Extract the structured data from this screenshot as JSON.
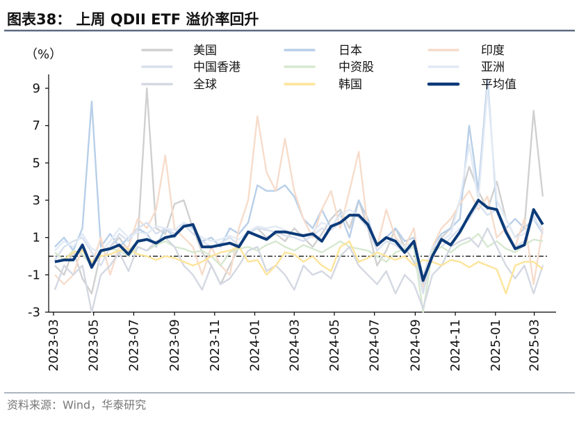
{
  "chart_data": {
    "type": "line",
    "title": "图表38： 上周 QDII ETF 溢价率回升",
    "ylabel": "（%）",
    "ylim": [
      -3,
      9
    ],
    "yticks": [
      -3,
      -1,
      1,
      3,
      5,
      7,
      9
    ],
    "xlim": [
      "2023-03-01",
      "2025-04-01"
    ],
    "xtick_labels": [
      "2023-03",
      "2023-05",
      "2023-07",
      "2023-09",
      "2023-11",
      "2024-01",
      "2024-03",
      "2024-05",
      "2024-07",
      "2024-09",
      "2024-11",
      "2025-01",
      "2025-03"
    ],
    "reference_line": 0,
    "grid": false,
    "legend_position": "top",
    "x": [
      "2023-03-03",
      "2023-03-17",
      "2023-03-31",
      "2023-04-14",
      "2023-04-28",
      "2023-05-12",
      "2023-05-26",
      "2023-06-09",
      "2023-06-23",
      "2023-07-07",
      "2023-07-21",
      "2023-08-04",
      "2023-08-18",
      "2023-09-01",
      "2023-09-15",
      "2023-09-29",
      "2023-10-13",
      "2023-10-27",
      "2023-11-10",
      "2023-11-24",
      "2023-12-08",
      "2023-12-22",
      "2024-01-05",
      "2024-01-19",
      "2024-02-02",
      "2024-02-16",
      "2024-03-01",
      "2024-03-15",
      "2024-03-29",
      "2024-04-12",
      "2024-04-26",
      "2024-05-10",
      "2024-05-24",
      "2024-06-07",
      "2024-06-21",
      "2024-07-05",
      "2024-07-19",
      "2024-08-02",
      "2024-08-16",
      "2024-08-30",
      "2024-09-13",
      "2024-09-27",
      "2024-10-11",
      "2024-10-25",
      "2024-11-08",
      "2024-11-22",
      "2024-12-06",
      "2024-12-20",
      "2025-01-03",
      "2025-01-17",
      "2025-01-31",
      "2025-02-14",
      "2025-02-28",
      "2025-03-14"
    ],
    "series": [
      {
        "name": "美国",
        "color": "#d0d0d0",
        "values": [
          -0.5,
          -1,
          0.3,
          -1.2,
          -2,
          0.2,
          0.5,
          1,
          0.3,
          0.8,
          9,
          1.5,
          1.2,
          2.8,
          3,
          1.5,
          0.2,
          -0.5,
          -1.5,
          -0.5,
          0.5,
          1.2,
          1.5,
          1,
          1.2,
          0.8,
          1.5,
          1,
          0.5,
          1.2,
          2,
          2.5,
          1.5,
          3,
          1.5,
          -0.5,
          0.3,
          1.5,
          0.5,
          -0.3,
          -1.5,
          0.3,
          1,
          1.5,
          3,
          4.8,
          3.5,
          2.5,
          4,
          2,
          1,
          1.5,
          7.8,
          3.2
        ]
      },
      {
        "name": "日本",
        "color": "#b8cfe8",
        "values": [
          0.5,
          1,
          0.3,
          1.5,
          8.3,
          0.5,
          1.2,
          0.5,
          1,
          1.5,
          1.2,
          0.5,
          1.5,
          1,
          1.8,
          1.5,
          0.8,
          1,
          0.5,
          1.5,
          1.2,
          1.8,
          3.8,
          3.5,
          3.5,
          3.8,
          3.2,
          2,
          1.5,
          2.5,
          1.5,
          2.3,
          1,
          3,
          2,
          0.5,
          1,
          1.5,
          0.8,
          1,
          -1.5,
          0.5,
          1.2,
          1.5,
          2,
          7,
          3.5,
          9.5,
          2.5,
          1.5,
          2,
          1.5,
          2,
          1.2
        ]
      },
      {
        "name": "印度",
        "color": "#f7dccb",
        "values": [
          -1,
          -1.5,
          -1,
          0.5,
          -0.5,
          1,
          -1,
          0.5,
          0.5,
          2,
          1.5,
          2.5,
          5.4,
          1.5,
          1,
          0.5,
          -1,
          0.5,
          -0.5,
          -1,
          1.5,
          3,
          7.5,
          4.5,
          3.5,
          6.3,
          3.5,
          2,
          1,
          2.5,
          3.5,
          1.5,
          3.5,
          5.6,
          1.5,
          0.5,
          2.5,
          1,
          0.5,
          1.5,
          -1.8,
          0.5,
          1.5,
          2,
          2.8,
          3.5,
          2.5,
          3.2,
          1,
          1.5,
          0.5,
          2,
          -1.5,
          1.5
        ]
      },
      {
        "name": "中国香港",
        "color": "#d8e0ee",
        "values": [
          -0.2,
          0.5,
          0.8,
          1,
          0.2,
          -0.5,
          0.5,
          1.2,
          0.8,
          1.5,
          1.8,
          1.2,
          1.5,
          1.2,
          1.7,
          1.2,
          0.8,
          0.5,
          0.7,
          1,
          0.6,
          1.2,
          1.5,
          1.4,
          1.3,
          1.1,
          1,
          0.8,
          1.1,
          1.5,
          1.4,
          1.8,
          2.2,
          2.1,
          1.5,
          0.3,
          0.8,
          0.6,
          0.2,
          0.5,
          -2,
          0.2,
          0.5,
          1,
          1.5,
          2,
          2.8,
          2.2,
          2.5,
          1.4,
          0.5,
          0.8,
          2.2,
          1.2
        ]
      },
      {
        "name": "中资股",
        "color": "#d6e8cf",
        "values": [
          0.2,
          -0.2,
          0.3,
          0.1,
          -0.5,
          0.2,
          0.4,
          0.3,
          0,
          0.5,
          0.3,
          0.6,
          0.8,
          0.5,
          0.4,
          0.2,
          0.3,
          0,
          -0.5,
          0.2,
          0.4,
          0.5,
          0.3,
          0.6,
          0.8,
          0.5,
          0.3,
          0.6,
          0.4,
          0.2,
          0.5,
          0.8,
          0.5,
          0.4,
          0.3,
          0,
          -0.3,
          0.2,
          0.4,
          0.5,
          -3,
          0.3,
          0.5,
          0.2,
          0.6,
          0.8,
          1.2,
          0.5,
          0.8,
          0.4,
          0.2,
          0.6,
          0.9,
          0.8
        ]
      },
      {
        "name": "亚洲",
        "color": "#e2eaf5",
        "values": [
          0.3,
          0.8,
          0.5,
          1.2,
          0.4,
          0.2,
          0.8,
          1.5,
          1,
          1.3,
          1.2,
          1.6,
          1.5,
          1.4,
          1.8,
          1.4,
          1,
          0.8,
          0.9,
          1.1,
          0.9,
          1.3,
          1.6,
          1.5,
          1.6,
          1.4,
          1.2,
          1,
          1.3,
          1.8,
          1.6,
          2.2,
          2.5,
          2.2,
          1.8,
          0.6,
          1,
          0.9,
          0.5,
          0.8,
          -1,
          0.5,
          0.8,
          1.2,
          3,
          6,
          3,
          9,
          3,
          2,
          1,
          1.2,
          2,
          1.5
        ]
      },
      {
        "name": "全球",
        "color": "#d4d8e2",
        "values": [
          -1.8,
          -0.5,
          -1,
          -0.5,
          -3,
          -1,
          -0.5,
          0.2,
          -0.8,
          0.5,
          0.3,
          0.8,
          1,
          0.5,
          -0.5,
          -1,
          -1.8,
          -0.5,
          -1.5,
          -1.2,
          -0.5,
          0.3,
          0.5,
          -0.8,
          -0.5,
          -1,
          -1.8,
          -0.5,
          -1,
          -0.8,
          -1.2,
          0,
          0.5,
          -0.5,
          -1,
          -1.5,
          -0.8,
          -2,
          -1,
          -1.5,
          -2.8,
          -1,
          -0.5,
          0.5,
          0.8,
          1,
          0.5,
          1.5,
          0.5,
          -0.5,
          -1.2,
          -0.5,
          -2,
          -0.5
        ]
      },
      {
        "name": "韩国",
        "color": "#fde49a",
        "values": [
          -0.3,
          -0.2,
          0.2,
          0.3,
          -0.3,
          0,
          0.1,
          0.3,
          0.4,
          0.1,
          0,
          -0.2,
          0,
          -0.1,
          -0.3,
          -0.5,
          -0.3,
          0,
          0.2,
          0.3,
          0.5,
          -0.3,
          -0.2,
          -1,
          -0.5,
          0.2,
          0.1,
          -0.3,
          0,
          -0.5,
          -0.8,
          0.5,
          0.8,
          -0.3,
          -0.1,
          0.2,
          0,
          -0.2,
          0,
          -0.5,
          -0.2,
          -0.3,
          -0.5,
          -0.2,
          -0.3,
          -0.6,
          -0.3,
          -0.5,
          -0.7,
          -2,
          -0.5,
          -0.3,
          -0.3,
          -0.7
        ]
      },
      {
        "name": "平均值",
        "color": "#0b3a78",
        "values": [
          -0.3,
          -0.2,
          -0.2,
          0.6,
          -0.6,
          0.3,
          0.4,
          0.6,
          0.1,
          0.8,
          0.9,
          0.7,
          1.0,
          1.1,
          1.6,
          1.7,
          0.5,
          0.5,
          0.6,
          0.7,
          0.5,
          1.3,
          1.1,
          0.9,
          1.3,
          1.3,
          1.2,
          1.1,
          1.2,
          0.8,
          1.6,
          1.8,
          2.2,
          2.2,
          1.7,
          0.6,
          1.0,
          0.8,
          0.2,
          0.8,
          -1.3,
          0,
          0.9,
          0.6,
          1.3,
          2.2,
          3.0,
          2.6,
          2.5,
          1.3,
          0.4,
          0.6,
          2.5,
          1.7
        ]
      }
    ]
  },
  "source": "资料来源：Wind，华泰研究"
}
